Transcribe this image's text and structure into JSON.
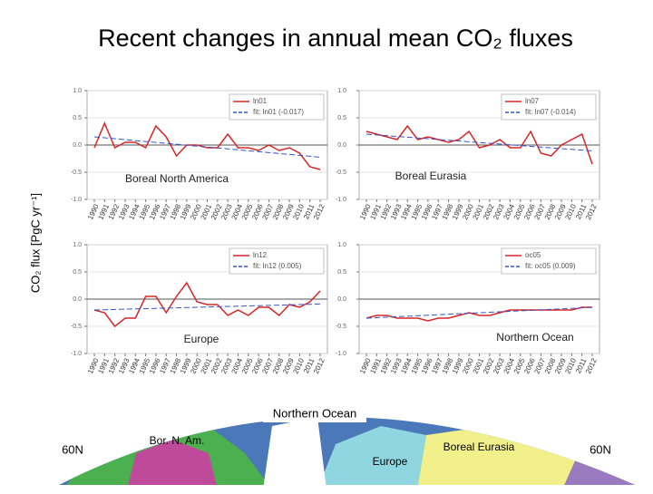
{
  "title": "Recent changes in annual mean CO₂ fluxes",
  "y_axis_label": "CO₂ flux [PgC yr⁻¹]",
  "chart_data": [
    {
      "type": "line",
      "annotation": "Boreal North America",
      "x": [
        "1990",
        "1991",
        "1992",
        "1993",
        "1994",
        "1995",
        "1996",
        "1997",
        "1998",
        "1999",
        "2000",
        "2001",
        "2002",
        "2003",
        "2004",
        "2005",
        "2006",
        "2007",
        "2008",
        "2009",
        "2010",
        "2011",
        "2012"
      ],
      "series": [
        {
          "name": "ln01",
          "color": "#d62728",
          "style": "solid",
          "values": [
            -0.05,
            0.4,
            -0.05,
            0.05,
            0.05,
            -0.05,
            0.35,
            0.15,
            -0.2,
            0.0,
            0.0,
            -0.05,
            -0.05,
            0.2,
            -0.05,
            -0.05,
            -0.1,
            0.0,
            -0.1,
            -0.05,
            -0.15,
            -0.4,
            -0.45
          ]
        },
        {
          "name": "fit: ln01 (-0.017)",
          "color": "#3355cc",
          "style": "dashed",
          "values": [
            0.15,
            0.133,
            0.116,
            0.099,
            0.082,
            0.065,
            0.048,
            0.031,
            0.014,
            -0.003,
            -0.02,
            -0.037,
            -0.054,
            -0.071,
            -0.088,
            -0.105,
            -0.122,
            -0.139,
            -0.156,
            -0.173,
            -0.19,
            -0.207,
            -0.224
          ]
        }
      ],
      "ylim": [
        -1,
        1
      ],
      "yticks": [
        {
          "value": -1,
          "label": "-1.0"
        },
        {
          "value": -0.5,
          "label": "-0.5"
        },
        {
          "value": 0,
          "label": "0.0"
        },
        {
          "value": 0.5,
          "label": "0.5"
        },
        {
          "value": 1,
          "label": "1.0"
        }
      ],
      "grid": true
    },
    {
      "type": "line",
      "annotation": "Boreal Eurasia",
      "x": [
        "1990",
        "1991",
        "1992",
        "1993",
        "1994",
        "1995",
        "1996",
        "1997",
        "1998",
        "1999",
        "2000",
        "2001",
        "2002",
        "2003",
        "2004",
        "2005",
        "2006",
        "2007",
        "2008",
        "2009",
        "2010",
        "2011",
        "2012"
      ],
      "series": [
        {
          "name": "ln07",
          "color": "#d62728",
          "style": "solid",
          "values": [
            0.25,
            0.2,
            0.15,
            0.1,
            0.35,
            0.1,
            0.15,
            0.1,
            0.05,
            0.1,
            0.25,
            -0.05,
            0.0,
            0.1,
            -0.05,
            -0.05,
            0.25,
            -0.15,
            -0.2,
            0.0,
            0.1,
            0.2,
            -0.35
          ]
        },
        {
          "name": "fit: ln07 (-0.014)",
          "color": "#3355cc",
          "style": "dashed",
          "values": [
            0.2,
            0.186,
            0.172,
            0.158,
            0.144,
            0.13,
            0.116,
            0.102,
            0.088,
            0.074,
            0.06,
            0.046,
            0.032,
            0.018,
            0.004,
            -0.01,
            -0.024,
            -0.038,
            -0.052,
            -0.066,
            -0.08,
            -0.094,
            -0.108
          ]
        }
      ],
      "ylim": [
        -1,
        1
      ],
      "yticks": [
        {
          "value": -1,
          "label": "-1.0"
        },
        {
          "value": -0.5,
          "label": "-0.5"
        },
        {
          "value": 0,
          "label": "0.0"
        },
        {
          "value": 0.5,
          "label": "0.5"
        },
        {
          "value": 1,
          "label": "1.0"
        }
      ],
      "grid": true
    },
    {
      "type": "line",
      "annotation": "Europe",
      "x": [
        "1990",
        "1991",
        "1992",
        "1993",
        "1994",
        "1995",
        "1996",
        "1997",
        "1998",
        "1999",
        "2000",
        "2001",
        "2002",
        "2003",
        "2004",
        "2005",
        "2006",
        "2007",
        "2008",
        "2009",
        "2010",
        "2011",
        "2012"
      ],
      "series": [
        {
          "name": "ln12",
          "color": "#d62728",
          "style": "solid",
          "values": [
            -0.2,
            -0.25,
            -0.5,
            -0.35,
            -0.35,
            0.05,
            0.05,
            -0.25,
            0.05,
            0.3,
            -0.05,
            -0.1,
            -0.1,
            -0.3,
            -0.2,
            -0.3,
            -0.15,
            -0.15,
            -0.3,
            -0.1,
            -0.15,
            -0.05,
            0.15
          ]
        },
        {
          "name": "fit: ln12 (0.005)",
          "color": "#3355cc",
          "style": "dashed",
          "values": [
            -0.2,
            -0.195,
            -0.19,
            -0.185,
            -0.18,
            -0.175,
            -0.17,
            -0.165,
            -0.16,
            -0.155,
            -0.15,
            -0.145,
            -0.14,
            -0.135,
            -0.13,
            -0.125,
            -0.12,
            -0.115,
            -0.11,
            -0.105,
            -0.1,
            -0.095,
            -0.09
          ]
        }
      ],
      "ylim": [
        -1,
        1
      ],
      "yticks": [
        {
          "value": -1,
          "label": "-1.0"
        },
        {
          "value": -0.5,
          "label": "-0.5"
        },
        {
          "value": 0,
          "label": "0.0"
        },
        {
          "value": 0.5,
          "label": "0.5"
        },
        {
          "value": 1,
          "label": "1.0"
        }
      ],
      "grid": true
    },
    {
      "type": "line",
      "annotation": "Northern Ocean",
      "x": [
        "1990",
        "1991",
        "1992",
        "1993",
        "1994",
        "1995",
        "1996",
        "1997",
        "1998",
        "1999",
        "2000",
        "2001",
        "2002",
        "2003",
        "2004",
        "2005",
        "2006",
        "2007",
        "2008",
        "2009",
        "2010",
        "2011",
        "2012"
      ],
      "series": [
        {
          "name": "oc05",
          "color": "#d62728",
          "style": "solid",
          "values": [
            -0.35,
            -0.3,
            -0.3,
            -0.35,
            -0.35,
            -0.35,
            -0.4,
            -0.35,
            -0.35,
            -0.3,
            -0.25,
            -0.3,
            -0.3,
            -0.25,
            -0.2,
            -0.2,
            -0.2,
            -0.2,
            -0.2,
            -0.2,
            -0.2,
            -0.15,
            -0.15
          ]
        },
        {
          "name": "fit: oc05 (0.009)",
          "color": "#3355cc",
          "style": "dashed",
          "values": [
            -0.35,
            -0.341,
            -0.332,
            -0.323,
            -0.314,
            -0.305,
            -0.296,
            -0.287,
            -0.278,
            -0.269,
            -0.26,
            -0.251,
            -0.242,
            -0.233,
            -0.224,
            -0.215,
            -0.206,
            -0.197,
            -0.188,
            -0.179,
            -0.17,
            -0.161,
            -0.152
          ]
        }
      ],
      "ylim": [
        -1,
        1
      ],
      "yticks": [
        {
          "value": -1,
          "label": "-1.0"
        },
        {
          "value": -0.5,
          "label": "-0.5"
        },
        {
          "value": 0,
          "label": "0.0"
        },
        {
          "value": 0.5,
          "label": "0.5"
        },
        {
          "value": 1,
          "label": "1.0"
        }
      ],
      "grid": true
    }
  ],
  "map": {
    "labels": [
      "Northern Ocean",
      "Bor. N. Am.",
      "Europe",
      "Boreal Eurasia",
      "60N",
      "60N"
    ]
  }
}
